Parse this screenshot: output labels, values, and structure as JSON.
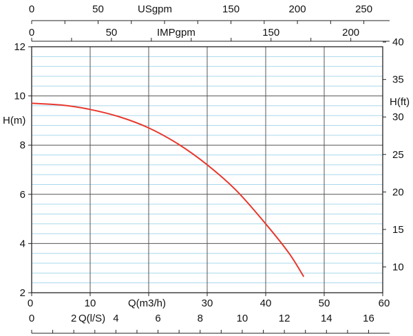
{
  "chart_data": {
    "type": "line",
    "title": "",
    "colors": {
      "curve": "#e8372c",
      "major_grid": "#555555",
      "minor_grid": "#a9d8ec",
      "axis": "#222222"
    },
    "grid": true,
    "x_axis": {
      "label": "Q(m3/h)",
      "range": [
        0,
        60
      ],
      "ticks": [
        0,
        10,
        20,
        30,
        40,
        50,
        60
      ],
      "tick_labels": [
        "0",
        "10",
        "",
        "30",
        "40",
        "50",
        "60"
      ]
    },
    "y_axis_left": {
      "label": "H(m)",
      "range": [
        2,
        12
      ],
      "ticks": [
        2,
        4,
        6,
        8,
        10,
        12
      ],
      "tick_labels": [
        "2",
        "4",
        "6",
        "8",
        "10",
        "12"
      ]
    },
    "y_axis_right": {
      "label": "H(ft)",
      "range": [
        6.56,
        39.37
      ],
      "ticks": [
        10,
        15,
        20,
        25,
        30,
        35,
        40
      ],
      "tick_labels": [
        "10",
        "15",
        "20",
        "25",
        "30",
        "35",
        "40"
      ]
    },
    "top_axis_usgpm": {
      "label": "USgpm",
      "range": [
        0,
        264.2
      ],
      "ticks": [
        0,
        50,
        150,
        200,
        250
      ],
      "tick_labels": [
        "0",
        "50",
        "150",
        "200",
        "250"
      ],
      "minor_step": 25
    },
    "top_axis_impgpm": {
      "label": "IMPgpm",
      "range": [
        0,
        220
      ],
      "ticks": [
        0,
        50,
        100,
        150,
        200
      ],
      "tick_labels": [
        "0",
        "50",
        "",
        "150",
        "200"
      ],
      "minor_step": 25
    },
    "bottom_axis_ls": {
      "label": "Q(l/S)",
      "range": [
        0,
        16.67
      ],
      "ticks": [
        0,
        2,
        4,
        6,
        8,
        10,
        12,
        14,
        16
      ],
      "tick_labels": [
        "0",
        "2",
        "4",
        "6",
        "8",
        "10",
        "12",
        "14",
        "16"
      ],
      "minor_step": 1
    },
    "series": [
      {
        "x": [
          0,
          5,
          10,
          15,
          20,
          25,
          30,
          35,
          40,
          44,
          46.5
        ],
        "y": [
          9.7,
          9.63,
          9.45,
          9.15,
          8.7,
          8.05,
          7.2,
          6.15,
          4.8,
          3.6,
          2.65
        ]
      }
    ]
  }
}
